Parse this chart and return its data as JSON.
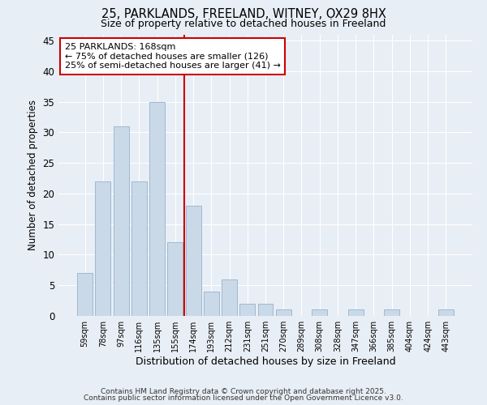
{
  "title1": "25, PARKLANDS, FREELAND, WITNEY, OX29 8HX",
  "title2": "Size of property relative to detached houses in Freeland",
  "xlabel": "Distribution of detached houses by size in Freeland",
  "ylabel": "Number of detached properties",
  "categories": [
    "59sqm",
    "78sqm",
    "97sqm",
    "116sqm",
    "135sqm",
    "155sqm",
    "174sqm",
    "193sqm",
    "212sqm",
    "231sqm",
    "251sqm",
    "270sqm",
    "289sqm",
    "308sqm",
    "328sqm",
    "347sqm",
    "366sqm",
    "385sqm",
    "404sqm",
    "424sqm",
    "443sqm"
  ],
  "values": [
    7,
    22,
    31,
    22,
    35,
    12,
    18,
    4,
    6,
    2,
    2,
    1,
    0,
    1,
    0,
    1,
    0,
    1,
    0,
    0,
    1
  ],
  "bar_color": "#c9d9e8",
  "bar_edge_color": "#a0b8d0",
  "vline_color": "#cc0000",
  "annotation_text": "25 PARKLANDS: 168sqm\n← 75% of detached houses are smaller (126)\n25% of semi-detached houses are larger (41) →",
  "annotation_box_color": "white",
  "annotation_box_edge_color": "#cc0000",
  "ylim": [
    0,
    46
  ],
  "yticks": [
    0,
    5,
    10,
    15,
    20,
    25,
    30,
    35,
    40,
    45
  ],
  "background_color": "#e8eef5",
  "footer1": "Contains HM Land Registry data © Crown copyright and database right 2025.",
  "footer2": "Contains public sector information licensed under the Open Government Licence v3.0."
}
